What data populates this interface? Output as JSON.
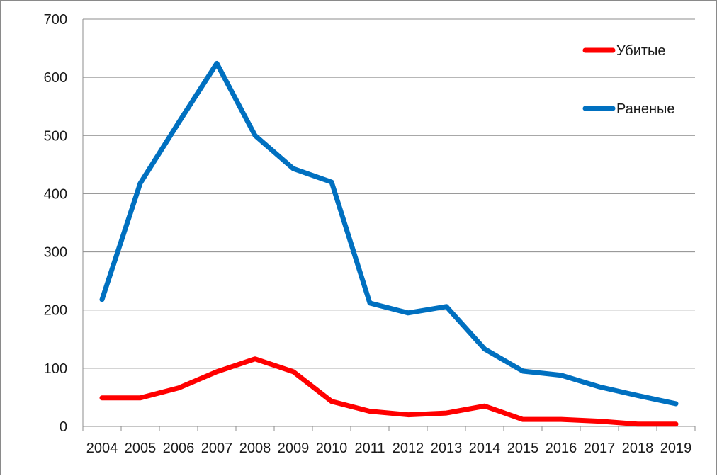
{
  "chart_data": {
    "type": "line",
    "title": "",
    "xlabel": "",
    "ylabel": "",
    "x": [
      "2004",
      "2005",
      "2006",
      "2007",
      "2008",
      "2009",
      "2010",
      "2011",
      "2012",
      "2013",
      "2014",
      "2015",
      "2016",
      "2017",
      "2018",
      "2019"
    ],
    "ylim": [
      0,
      700
    ],
    "yticks": [
      0,
      100,
      200,
      300,
      400,
      500,
      600,
      700
    ],
    "grid": true,
    "legend_position": "top-right",
    "series": [
      {
        "name": "Убитые",
        "color": "#ff0000",
        "values": [
          49,
          49,
          66,
          94,
          116,
          94,
          43,
          26,
          20,
          23,
          35,
          12,
          12,
          9,
          4,
          4
        ]
      },
      {
        "name": "Раненые",
        "color": "#0070c0",
        "values": [
          218,
          418,
          522,
          624,
          500,
          443,
          420,
          212,
          195,
          206,
          133,
          95,
          88,
          68,
          53,
          39
        ]
      }
    ]
  }
}
